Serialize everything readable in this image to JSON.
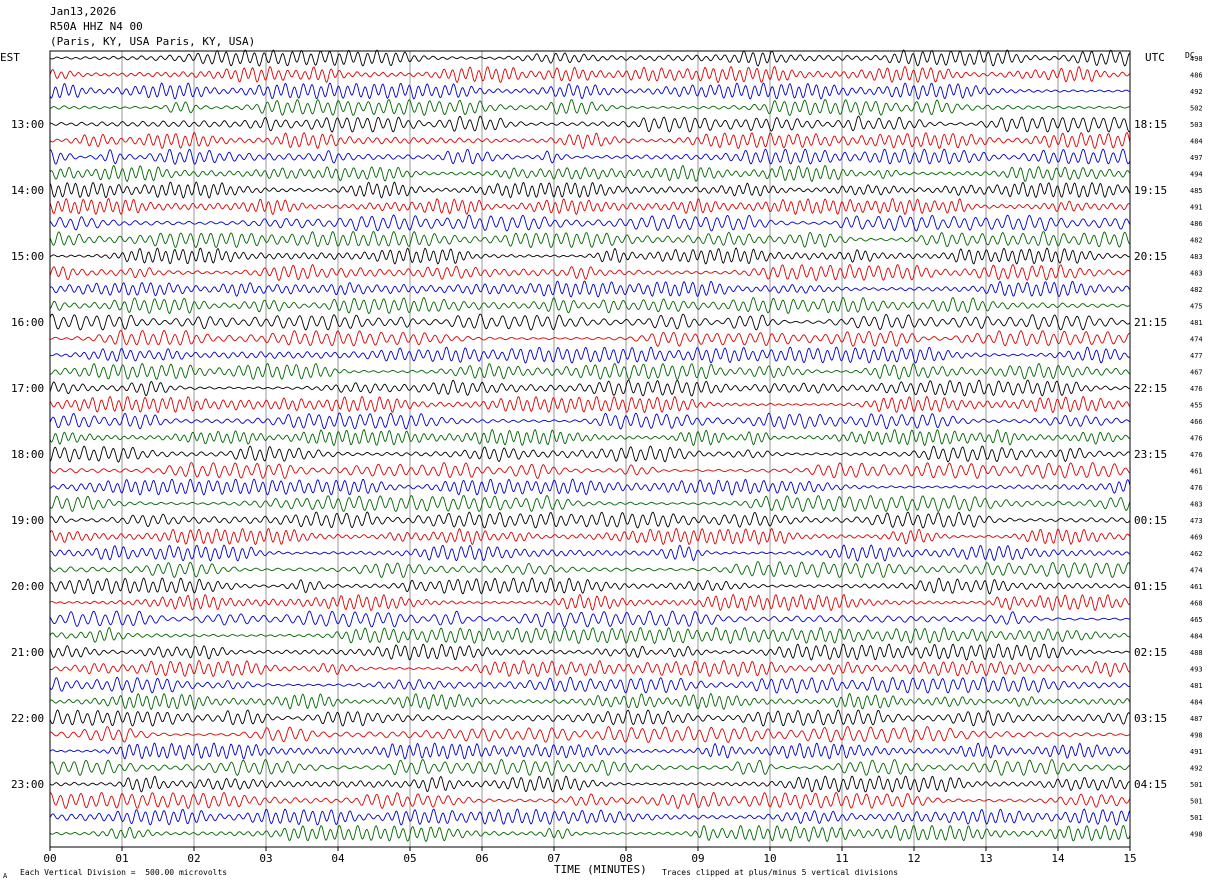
{
  "header": {
    "date": "Jan13,2026",
    "station": "R50A HHZ N4 00",
    "location": "(Paris, KY, USA Paris, KY, USA)"
  },
  "labels": {
    "left_tz": "EST",
    "right_tz": "UTC",
    "dc_label": "DC",
    "footer_scale": "Each Vertical Division =  500.00 microvolts",
    "footer_clip": "Traces clipped at plus/minus 5 vertical divisions",
    "corner_mark": "A"
  },
  "colors": {
    "traces": [
      "#000000",
      "#dd0000",
      "#0000cc",
      "#006600"
    ],
    "grid": "#808080",
    "frame": "#000000"
  },
  "chart_data": {
    "type": "line",
    "title": "R50A HHZ N4 00",
    "xlabel": "TIME (MINUTES)",
    "ylabel": "",
    "x_range": [
      0,
      15
    ],
    "x_ticks": [
      "00",
      "01",
      "02",
      "03",
      "04",
      "05",
      "06",
      "07",
      "08",
      "09",
      "10",
      "11",
      "12",
      "13",
      "14",
      "15"
    ],
    "trace_count": 48,
    "trace_minutes": 15,
    "left_hour_labels": [
      "13:00",
      "14:00",
      "15:00",
      "16:00",
      "17:00",
      "18:00",
      "19:00",
      "20:00",
      "21:00",
      "22:00",
      "23:00"
    ],
    "right_hour_labels": [
      "18:15",
      "19:15",
      "20:15",
      "21:15",
      "22:15",
      "23:15",
      "00:15",
      "01:15",
      "02:15",
      "03:15",
      "04:15"
    ],
    "dc_offsets": [
      498,
      486,
      492,
      502,
      503,
      484,
      497,
      494,
      485,
      491,
      486,
      482,
      483,
      483,
      482,
      475,
      481,
      474,
      477,
      467,
      476,
      455,
      466,
      476,
      476,
      461,
      476,
      483,
      473,
      469,
      462,
      474,
      461,
      468,
      465,
      484,
      488,
      493,
      481,
      484,
      487,
      498,
      491,
      492,
      501,
      501,
      501,
      498
    ],
    "vertical_division_microvolts": 500.0,
    "clip_divisions": 5
  }
}
